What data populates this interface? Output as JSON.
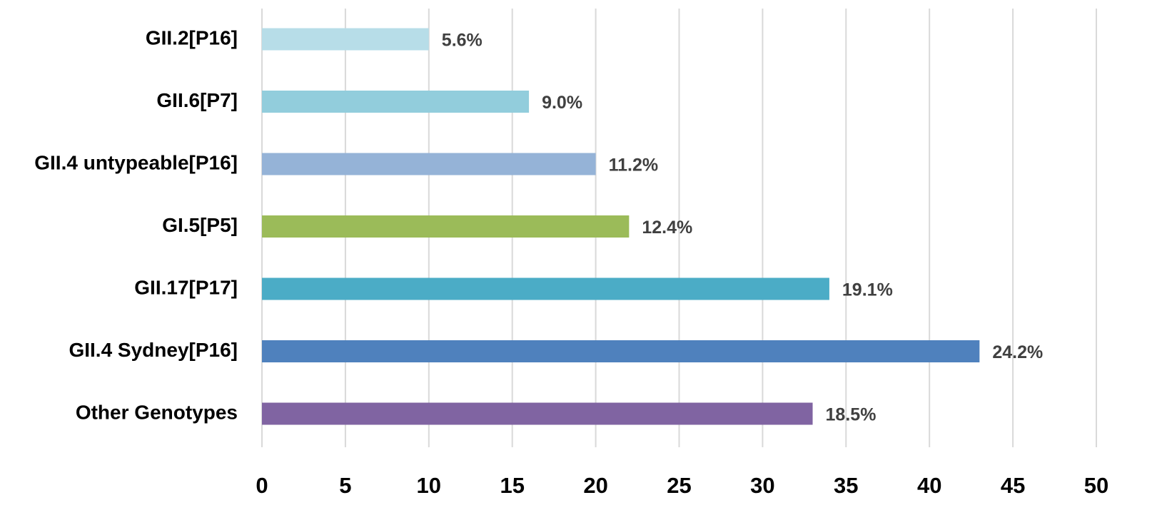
{
  "chart_data": {
    "type": "bar",
    "orientation": "horizontal",
    "title": "",
    "xlabel": "",
    "ylabel": "",
    "categories": [
      "GII.2[P16]",
      "GII.6[P7]",
      "GII.4 untypeable[P16]",
      "GI.5[P5]",
      "GII.17[P17]",
      "GII.4 Sydney[P16]",
      "Other Genotypes"
    ],
    "values": [
      10,
      16,
      20,
      22,
      34,
      43,
      33
    ],
    "data_labels": [
      "5.6%",
      "9.0%",
      "11.2%",
      "12.4%",
      "19.1%",
      "24.2%",
      "18.5%"
    ],
    "colors": [
      "#b7dde8",
      "#92cddc",
      "#95b3d7",
      "#9bbb59",
      "#4bacc6",
      "#4f81bd",
      "#8064a2"
    ],
    "xlim": [
      0,
      50
    ],
    "xticks": [
      0,
      5,
      10,
      15,
      20,
      25,
      30,
      35,
      40,
      45,
      50
    ],
    "tick_labels": [
      "0",
      "5",
      "10",
      "15",
      "20",
      "25",
      "30",
      "35",
      "40",
      "45",
      "50"
    ],
    "grid": "vertical",
    "legend": "none"
  }
}
